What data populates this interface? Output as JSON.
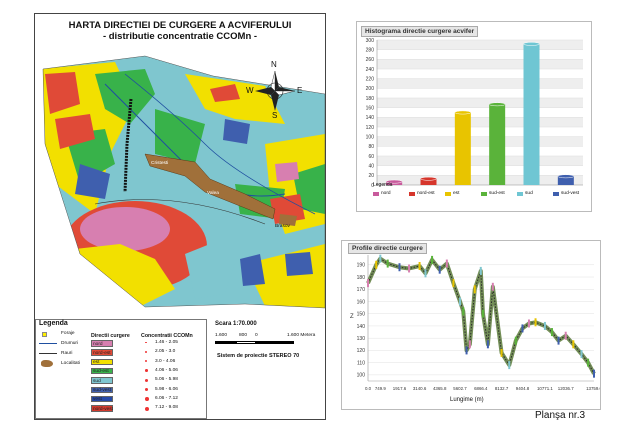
{
  "map": {
    "title_line1": "HARTA DIRECTIEI DE CURGERE A ACVIFERULUI",
    "title_line2": "- distributie concentratie CCOMn -",
    "compass": {
      "n": "N",
      "s": "S",
      "e": "E",
      "w": "W"
    },
    "place_labels": [
      "Cristesti",
      "Valea",
      "Brasov"
    ],
    "scale_label": "Scara 1:70.000",
    "scale_ticks": [
      "1.600",
      "800",
      "0",
      "1.600 Metera"
    ],
    "projection": "Sistem de proiectie STEREO 70"
  },
  "legend": {
    "title": "Legenda",
    "symbols": [
      {
        "label": "Foraje"
      },
      {
        "label": "Drumuri"
      },
      {
        "label": "Rauri"
      },
      {
        "label": "Localitati"
      }
    ],
    "dir_header": "Directii curgere",
    "directions": [
      {
        "label": "nord",
        "color": "#d77fb0"
      },
      {
        "label": "nord-est",
        "color": "#e04a37"
      },
      {
        "label": "est",
        "color": "#f2e000"
      },
      {
        "label": "sud-est",
        "color": "#38b24a"
      },
      {
        "label": "sud",
        "color": "#7fc6cf"
      },
      {
        "label": "sud-vest",
        "color": "#3f5fae"
      },
      {
        "label": "vest",
        "color": "#264aa8"
      },
      {
        "label": "nord-vest",
        "color": "#d23a2e"
      }
    ],
    "conc_header": "Concentratii CCOMn",
    "concentrations": [
      "1.46 - 2.05",
      "2.05 - 3.0",
      "3.0 - 4.06",
      "4.06 - 5.06",
      "5.06 - 5.98",
      "5.98 - 6.06",
      "6.06 - 7.12",
      "7.12 - 9.08"
    ]
  },
  "histogram": {
    "title": "Histograma directie curgere acvifer",
    "legend_title": "Legenda"
  },
  "profile": {
    "title": "Profile directie curgere",
    "xlabel": "Lungime (m)"
  },
  "footer": {
    "plansa": "Planşa nr.3"
  },
  "chart_data": [
    {
      "type": "bar",
      "title": "Histograma directie curgere acvifer",
      "categories": [
        "nord",
        "nord-est",
        "est",
        "sud-est",
        "sud",
        "sud-vest"
      ],
      "values": [
        7,
        13,
        150,
        167,
        292,
        18
      ],
      "colors": [
        "#c85a9c",
        "#d6362c",
        "#e8c400",
        "#5ab33a",
        "#6fc6d3",
        "#3f5fae"
      ],
      "ylim": [
        0,
        300
      ],
      "yticks": [
        "0",
        "20",
        "40",
        "60",
        "80",
        "100",
        "120",
        "140",
        "160",
        "180",
        "200",
        "220",
        "240",
        "260",
        "280",
        "300"
      ],
      "grid": true,
      "legend": "bottom"
    },
    {
      "type": "line",
      "title": "Profile directie curgere",
      "xlabel": "Lungime (m)",
      "ylabel": "Z",
      "xticks": [
        "0.0",
        "749.9",
        "1917.6",
        "3140.6",
        "4365.8",
        "5602.7",
        "6866.4",
        "8132.7",
        "9404.8",
        "10771.1",
        "12036.7",
        "13759.0"
      ],
      "yticks": [
        "100",
        "110",
        "120",
        "130",
        "140",
        "150",
        "160",
        "170",
        "180",
        "190"
      ],
      "ylim": [
        95,
        198
      ],
      "x": [
        0,
        500,
        749.9,
        1200,
        1917.6,
        2500,
        3140.6,
        3500,
        3900,
        4365.8,
        4800,
        5200,
        5602.7,
        5800,
        6000,
        6200,
        6500,
        6866.4,
        7000,
        7300,
        7600,
        8132.7,
        8600,
        9000,
        9404.8,
        9800,
        10200,
        10771.1,
        11200,
        11600,
        12036.7,
        12500,
        13000,
        13400,
        13759.0
      ],
      "y": [
        175,
        190,
        195,
        191,
        188,
        187,
        189,
        183,
        194,
        186,
        191,
        175,
        160,
        152,
        120,
        125,
        170,
        185,
        150,
        125,
        172,
        118,
        108,
        128,
        138,
        142,
        143,
        140,
        135,
        128,
        132,
        125,
        117,
        110,
        101
      ]
    }
  ]
}
